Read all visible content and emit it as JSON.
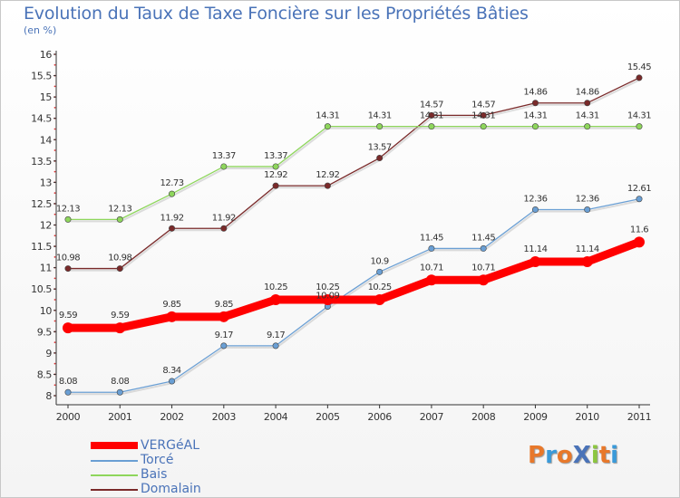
{
  "header": {
    "title": "Evolution du Taux de Taxe Foncière sur les Propriétés Bâties",
    "unit": "(en %)"
  },
  "logo": {
    "text": "ProXiti",
    "colors": [
      "#e8782a",
      "#3a9ad9",
      "#e8782a",
      "#4a73b8",
      "#8cc63f",
      "#e8782a",
      "#3a9ad9"
    ]
  },
  "chart_data": {
    "type": "line",
    "title": "Evolution du Taux de Taxe Foncière sur les Propriétés Bâties",
    "ylabel": "(en %)",
    "xlabel": "",
    "x": [
      "2000",
      "2001",
      "2002",
      "2003",
      "2004",
      "2005",
      "2006",
      "2007",
      "2008",
      "2009",
      "2010",
      "2011"
    ],
    "ylim": [
      8,
      16
    ],
    "yticks": [
      "8",
      "8.5",
      "9",
      "9.5",
      "10",
      "10.5",
      "11",
      "11.5",
      "12",
      "12.5",
      "13",
      "13.5",
      "14",
      "14.5",
      "15",
      "15.5",
      "16"
    ],
    "grid": false,
    "legend_position": "bottom-left",
    "series": [
      {
        "name": "VERGéAL",
        "color": "#ff0000",
        "values": [
          9.59,
          9.59,
          9.85,
          9.85,
          10.25,
          10.25,
          10.25,
          10.71,
          10.71,
          11.14,
          11.14,
          11.6
        ],
        "labels": [
          "9.59",
          "9.59",
          "9.85",
          "9.85",
          "10.25",
          "10.25",
          "10.25",
          "10.71",
          "10.71",
          "11.14",
          "11.14",
          "11.6"
        ]
      },
      {
        "name": "Torcé",
        "color": "#6a9fd4",
        "values": [
          8.08,
          8.08,
          8.34,
          9.17,
          9.17,
          10.09,
          10.9,
          11.45,
          11.45,
          12.36,
          12.36,
          12.61
        ],
        "labels": [
          "8.08",
          "8.08",
          "8.34",
          "9.17",
          "9.17",
          "10.09",
          "10.9",
          "11.45",
          "11.45",
          "12.36",
          "12.36",
          "12.61"
        ]
      },
      {
        "name": "Bais",
        "color": "#8ed65c",
        "values": [
          12.13,
          12.13,
          12.73,
          13.37,
          13.37,
          14.31,
          14.31,
          14.31,
          14.31,
          14.31,
          14.31,
          14.31
        ],
        "labels": [
          "12.13",
          "12.13",
          "12.73",
          "13.37",
          "13.37",
          "14.31",
          "14.31",
          "14.31",
          "14.31",
          "14.31",
          "14.31",
          "14.31"
        ]
      },
      {
        "name": "Domalain",
        "color": "#7a2a2a",
        "values": [
          10.98,
          10.98,
          11.92,
          11.92,
          12.92,
          12.92,
          13.57,
          14.57,
          14.57,
          14.86,
          14.86,
          15.45
        ],
        "labels": [
          "10.98",
          "10.98",
          "11.92",
          "11.92",
          "12.92",
          "12.92",
          "13.57",
          "14.57",
          "14.57",
          "14.86",
          "14.86",
          "15.45"
        ]
      }
    ]
  }
}
